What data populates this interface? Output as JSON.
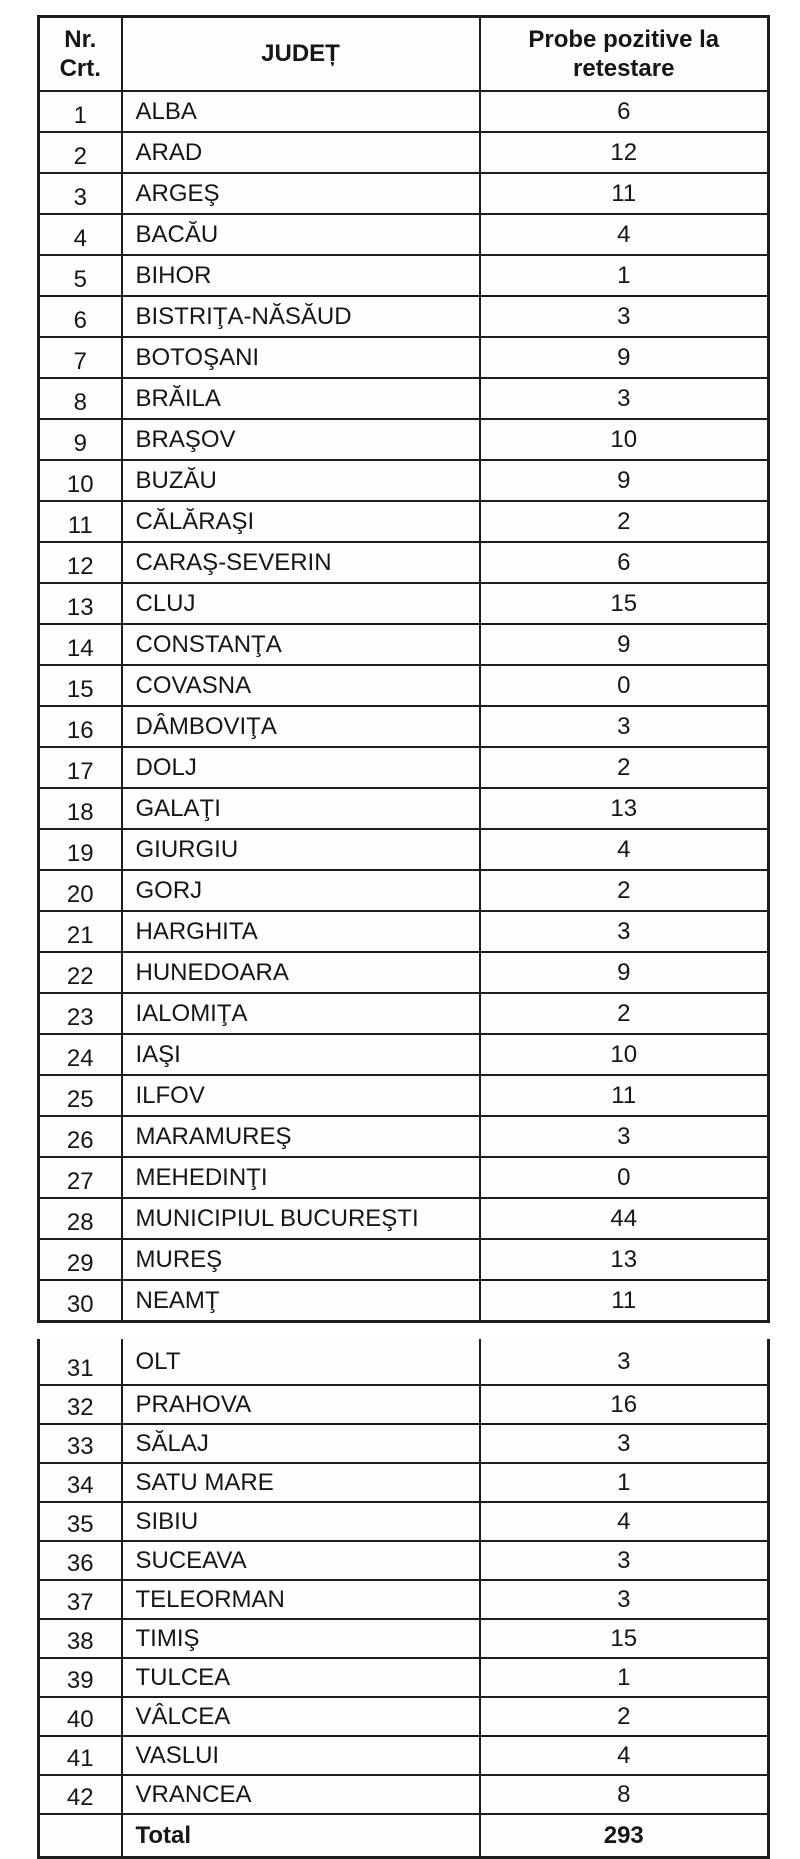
{
  "table": {
    "header": {
      "nr_line1": "Nr.",
      "nr_line2": "Crt.",
      "judet": "JUDEȚ",
      "probe": "Probe pozitive la retestare"
    },
    "split_after": 30,
    "rows": [
      {
        "nr": "1",
        "judet": "ALBA",
        "value": "6"
      },
      {
        "nr": "2",
        "judet": "ARAD",
        "value": "12"
      },
      {
        "nr": "3",
        "judet": "ARGEŞ",
        "value": "11"
      },
      {
        "nr": "4",
        "judet": "BACĂU",
        "value": "4"
      },
      {
        "nr": "5",
        "judet": "BIHOR",
        "value": "1"
      },
      {
        "nr": "6",
        "judet": "BISTRIŢA-NĂSĂUD",
        "value": "3"
      },
      {
        "nr": "7",
        "judet": "BOTOŞANI",
        "value": "9"
      },
      {
        "nr": "8",
        "judet": "BRĂILA",
        "value": "3"
      },
      {
        "nr": "9",
        "judet": "BRAŞOV",
        "value": "10"
      },
      {
        "nr": "10",
        "judet": "BUZĂU",
        "value": "9"
      },
      {
        "nr": "11",
        "judet": "CĂLĂRAŞI",
        "value": "2"
      },
      {
        "nr": "12",
        "judet": "CARAŞ-SEVERIN",
        "value": "6"
      },
      {
        "nr": "13",
        "judet": "CLUJ",
        "value": "15"
      },
      {
        "nr": "14",
        "judet": "CONSTANŢA",
        "value": "9"
      },
      {
        "nr": "15",
        "judet": "COVASNA",
        "value": "0"
      },
      {
        "nr": "16",
        "judet": "DÂMBOVIŢA",
        "value": "3"
      },
      {
        "nr": "17",
        "judet": "DOLJ",
        "value": "2"
      },
      {
        "nr": "18",
        "judet": "GALAŢI",
        "value": "13"
      },
      {
        "nr": "19",
        "judet": "GIURGIU",
        "value": "4"
      },
      {
        "nr": "20",
        "judet": "GORJ",
        "value": "2"
      },
      {
        "nr": "21",
        "judet": "HARGHITA",
        "value": "3"
      },
      {
        "nr": "22",
        "judet": "HUNEDOARA",
        "value": "9"
      },
      {
        "nr": "23",
        "judet": "IALOMIŢA",
        "value": "2"
      },
      {
        "nr": "24",
        "judet": "IAŞI",
        "value": "10"
      },
      {
        "nr": "25",
        "judet": "ILFOV",
        "value": "11"
      },
      {
        "nr": "26",
        "judet": "MARAMUREŞ",
        "value": "3"
      },
      {
        "nr": "27",
        "judet": "MEHEDINŢI",
        "value": "0"
      },
      {
        "nr": "28",
        "judet": "MUNICIPIUL BUCUREŞTI",
        "value": "44"
      },
      {
        "nr": "29",
        "judet": "MUREŞ",
        "value": "13"
      },
      {
        "nr": "30",
        "judet": "NEAMŢ",
        "value": "11"
      },
      {
        "nr": "31",
        "judet": "OLT",
        "value": "3"
      },
      {
        "nr": "32",
        "judet": "PRAHOVA",
        "value": "16"
      },
      {
        "nr": "33",
        "judet": "SĂLAJ",
        "value": "3"
      },
      {
        "nr": "34",
        "judet": "SATU MARE",
        "value": "1"
      },
      {
        "nr": "35",
        "judet": "SIBIU",
        "value": "4"
      },
      {
        "nr": "36",
        "judet": "SUCEAVA",
        "value": "3"
      },
      {
        "nr": "37",
        "judet": "TELEORMAN",
        "value": "3"
      },
      {
        "nr": "38",
        "judet": "TIMIŞ",
        "value": "15"
      },
      {
        "nr": "39",
        "judet": "TULCEA",
        "value": "1"
      },
      {
        "nr": "40",
        "judet": "VÂLCEA",
        "value": "2"
      },
      {
        "nr": "41",
        "judet": "VASLUI",
        "value": "4"
      },
      {
        "nr": "42",
        "judet": "VRANCEA",
        "value": "8"
      }
    ],
    "total_label": "Total",
    "total_value": "293"
  },
  "colors": {
    "text": "#161616",
    "border": "#1d1d1d",
    "background": "#ffffff"
  }
}
